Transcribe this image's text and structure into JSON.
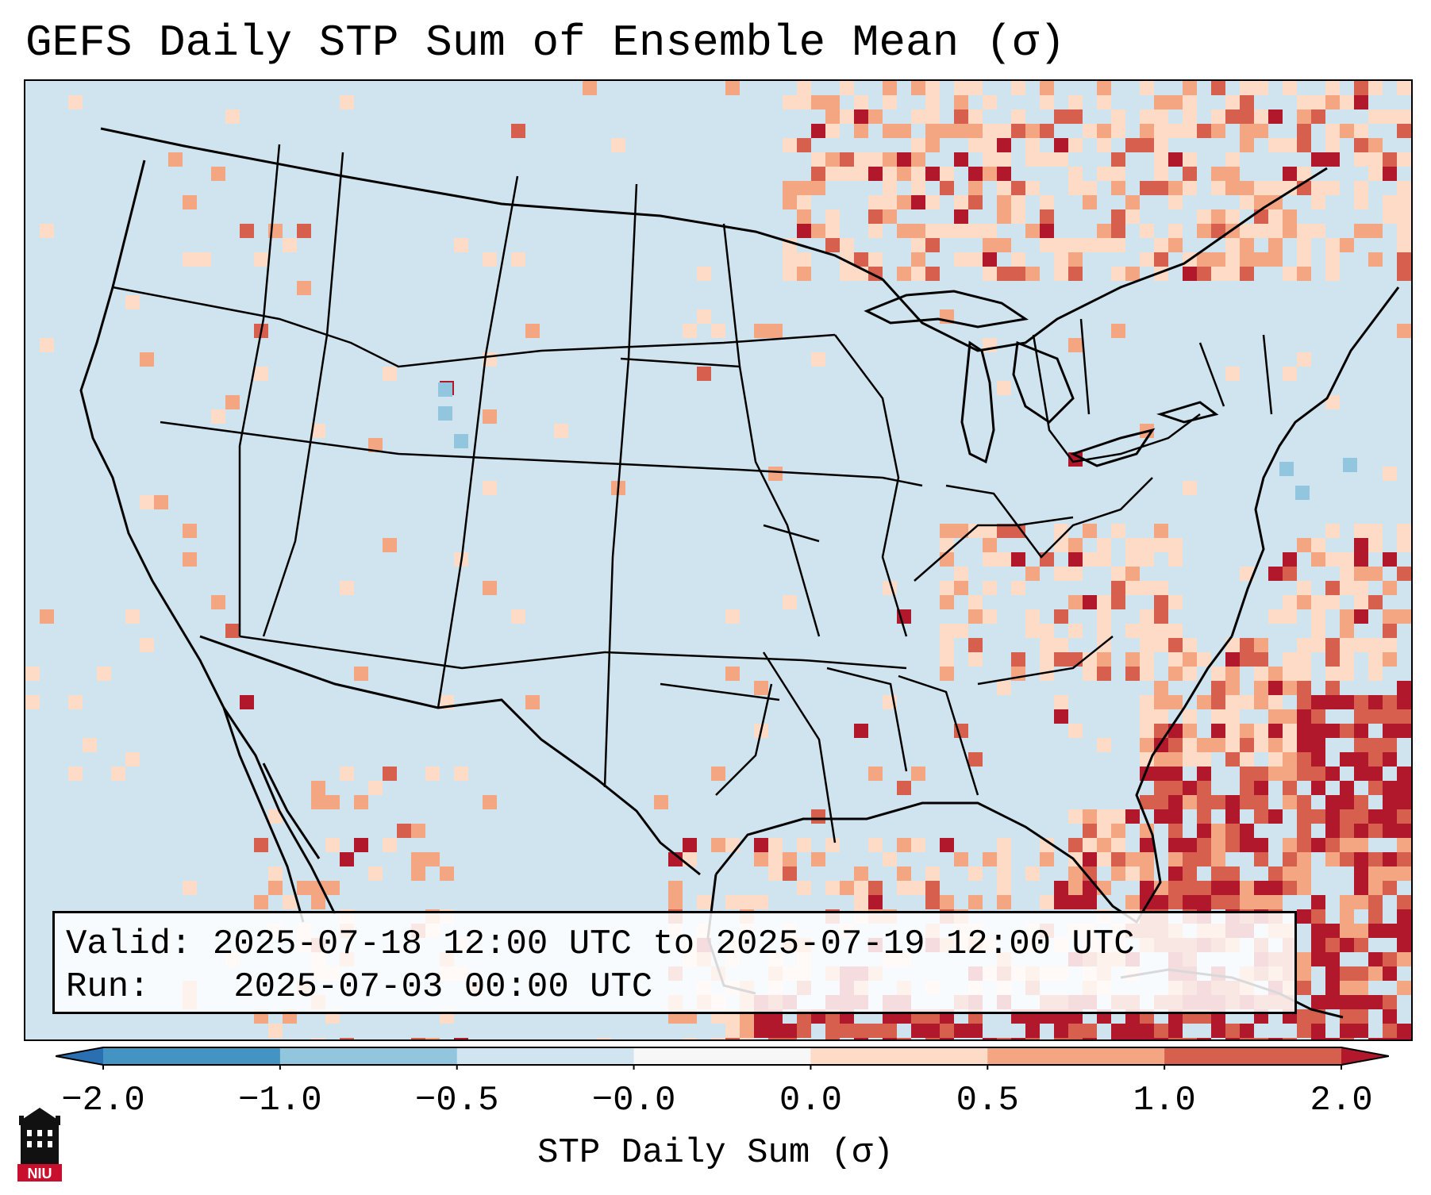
{
  "title": "GEFS Daily STP Sum of Ensemble Mean (σ)",
  "info": {
    "valid_label": "Valid:",
    "valid_value": "2025-07-18 12:00 UTC to 2025-07-19 12:00 UTC",
    "run_label": "Run:",
    "run_value": "2025-07-03 00:00 UTC"
  },
  "colorbar": {
    "label": "STP Daily Sum (σ)",
    "ticks": [
      "−2.0",
      "−1.0",
      "−0.5",
      "−0.0",
      "0.0",
      "0.5",
      "1.0",
      "2.0"
    ],
    "colors": [
      "#2b6fb3",
      "#4393c3",
      "#92c5de",
      "#d1e5f0",
      "#f7f7f7",
      "#fddbc7",
      "#f4a582",
      "#d6604d",
      "#b2182b"
    ]
  },
  "logo": {
    "text": "NIU",
    "icon": "niu-building-icon"
  },
  "background_color": "#d0e4ef"
}
